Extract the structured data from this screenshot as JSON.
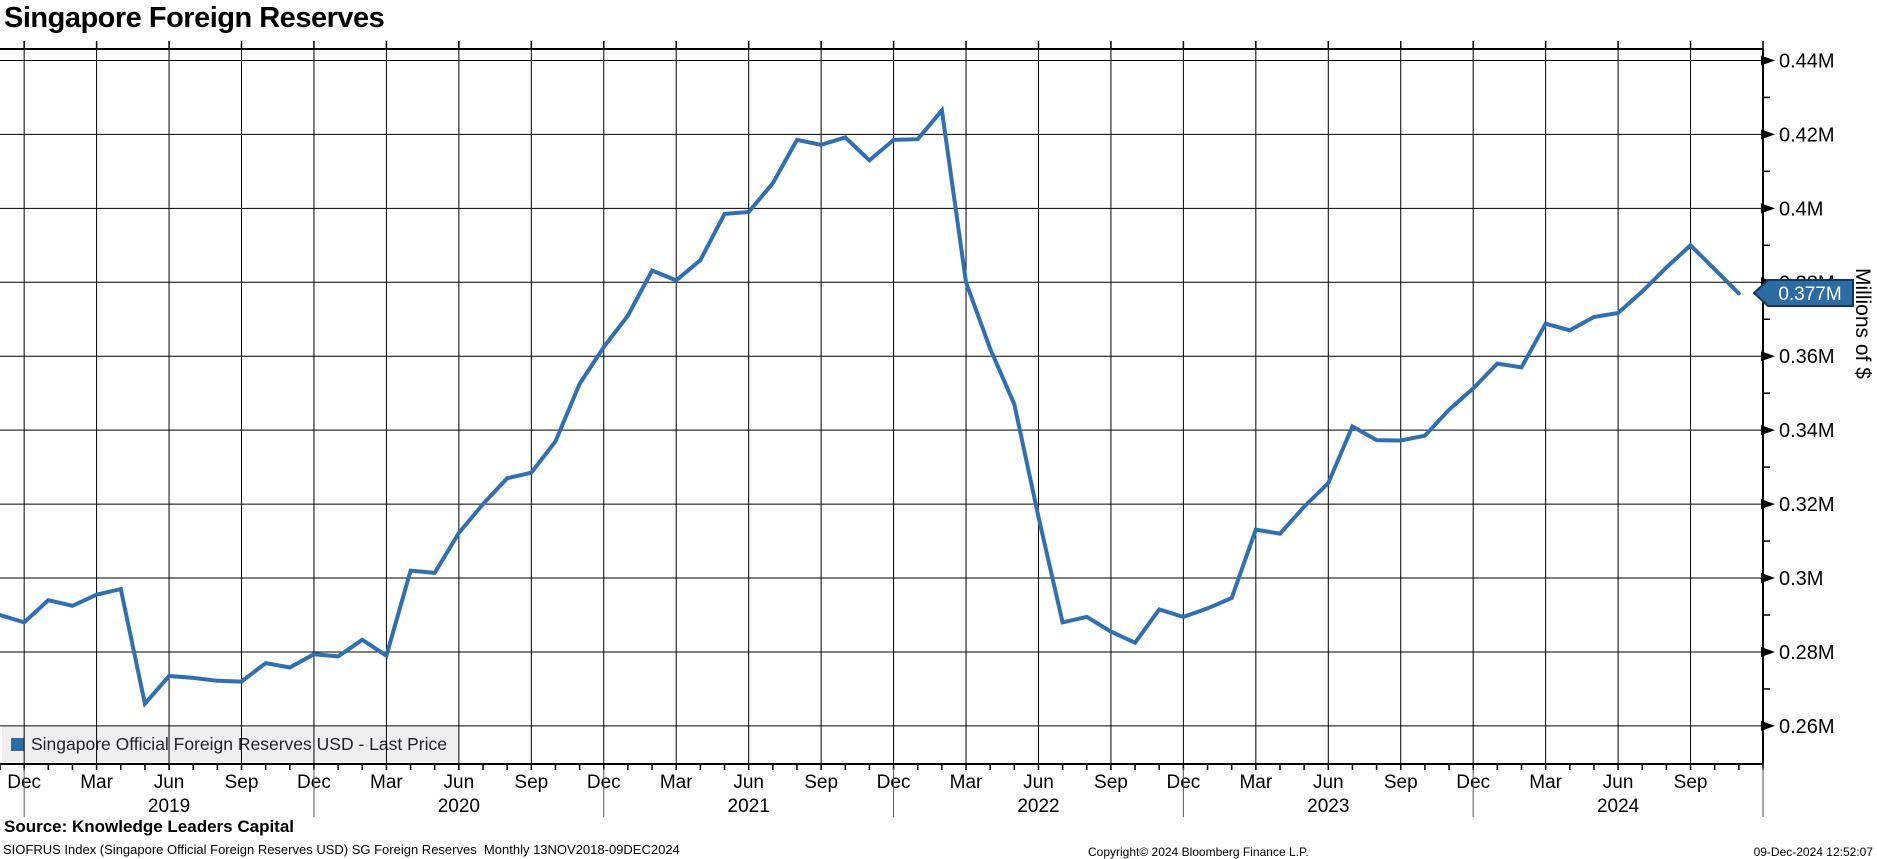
{
  "title": "Singapore Foreign Reserves",
  "legend": {
    "label": "Singapore Official Foreign Reserves USD - Last Price"
  },
  "y_axis": {
    "title": "Millions of $"
  },
  "last_price": {
    "label": "0.377M",
    "value": 0.377
  },
  "footer": {
    "source": "Source: Knowledge Leaders Capital",
    "index_info": "SIOFRUS Index (Singapore Official Foreign Reserves USD) SG Foreign Reserves  Monthly 13NOV2018-09DEC2024",
    "copyright": "Copyright© 2024 Bloomberg Finance L.P.",
    "timestamp": "09-Dec-2024 12:52:07"
  },
  "colors": {
    "line": "#2f6fb2",
    "legend_swatch": "#2d6ba5",
    "badge_fill": "#2d6ba5",
    "badge_border": "#16365c",
    "grid": "#000000",
    "legend_bg": "#efefef"
  },
  "chart_data": {
    "type": "line",
    "title": "Singapore Foreign Reserves",
    "series_name": "Singapore Official Foreign Reserves USD - Last Price",
    "frequency": "Monthly",
    "start": "Nov 2018",
    "end": "Nov 2024",
    "ylabel": "Millions of $",
    "ylim": [
      0.2497,
      0.4431
    ],
    "grid": true,
    "last_price_label": "0.377M",
    "y_ticks": [
      {
        "value": 0.26,
        "label": "0.26M"
      },
      {
        "value": 0.28,
        "label": "0.28M"
      },
      {
        "value": 0.3,
        "label": "0.3M"
      },
      {
        "value": 0.32,
        "label": "0.32M"
      },
      {
        "value": 0.34,
        "label": "0.34M"
      },
      {
        "value": 0.36,
        "label": "0.36M"
      },
      {
        "value": 0.38,
        "label": "0.38M"
      },
      {
        "value": 0.4,
        "label": "0.4M"
      },
      {
        "value": 0.42,
        "label": "0.42M"
      },
      {
        "value": 0.44,
        "label": "0.44M"
      }
    ],
    "y_minor_ticks": [
      0.27,
      0.29,
      0.31,
      0.33,
      0.35,
      0.37,
      0.39,
      0.41,
      0.43
    ],
    "quarter_labels": [
      "Dec",
      "Mar",
      "Jun",
      "Sep",
      "Dec",
      "Mar",
      "Jun",
      "Sep",
      "Dec",
      "Mar",
      "Jun",
      "Sep",
      "Dec",
      "Mar",
      "Jun",
      "Sep",
      "Dec",
      "Mar",
      "Jun",
      "Sep",
      "Dec",
      "Mar",
      "Jun",
      "Sep"
    ],
    "year_labels": [
      "2019",
      "2020",
      "2021",
      "2022",
      "2023",
      "2024"
    ],
    "values": [
      0.29,
      0.288,
      0.294,
      0.2925,
      0.2955,
      0.297,
      0.266,
      0.2735,
      0.273,
      0.2722,
      0.272,
      0.277,
      0.2758,
      0.2794,
      0.2788,
      0.2833,
      0.279,
      0.302,
      0.3014,
      0.3122,
      0.32,
      0.327,
      0.3285,
      0.337,
      0.3525,
      0.3625,
      0.371,
      0.3832,
      0.3805,
      0.386,
      0.3985,
      0.399,
      0.4068,
      0.4185,
      0.4172,
      0.4192,
      0.413,
      0.4185,
      0.4187,
      0.4265,
      0.38,
      0.362,
      0.347,
      0.3165,
      0.288,
      0.2895,
      0.2855,
      0.2825,
      0.2915,
      0.2895,
      0.2918,
      0.2946,
      0.3131,
      0.312,
      0.3193,
      0.3257,
      0.341,
      0.3373,
      0.3372,
      0.3385,
      0.3455,
      0.3513,
      0.358,
      0.357,
      0.3688,
      0.367,
      0.3706,
      0.3717,
      0.3775,
      0.384,
      0.39,
      0.3835,
      0.377
    ]
  }
}
